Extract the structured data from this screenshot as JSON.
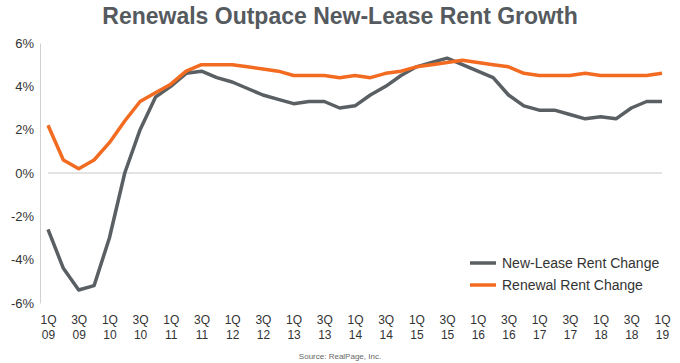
{
  "chart_data": {
    "type": "line",
    "title": "Renewals Outpace New-Lease Rent Growth",
    "source": "Source: RealPage, Inc.",
    "categories": [
      "1Q 09",
      null,
      "3Q 09",
      null,
      "1Q 10",
      null,
      "3Q 10",
      null,
      "1Q 11",
      null,
      "3Q 11",
      null,
      "1Q 12",
      null,
      "3Q 12",
      null,
      "1Q 13",
      null,
      "3Q 13",
      null,
      "1Q 14",
      null,
      "3Q 14",
      null,
      "1Q 15",
      null,
      "3Q 15",
      null,
      "1Q 16",
      null,
      "3Q 16",
      null,
      "1Q 17",
      null,
      "3Q 17",
      null,
      "1Q 18",
      null,
      "3Q 18",
      null,
      "1Q 19"
    ],
    "series": [
      {
        "name": "New-Lease Rent Change",
        "color": "#595f63",
        "values": [
          -2.6,
          -4.4,
          -5.4,
          -5.2,
          -3.0,
          0.0,
          2.0,
          3.5,
          4.0,
          4.6,
          4.7,
          4.4,
          4.2,
          3.9,
          3.6,
          3.4,
          3.2,
          3.3,
          3.3,
          3.0,
          3.1,
          3.6,
          4.0,
          4.5,
          4.9,
          5.1,
          5.3,
          5.0,
          4.7,
          4.4,
          3.6,
          3.1,
          2.9,
          2.9,
          2.7,
          2.5,
          2.6,
          2.5,
          3.0,
          3.3,
          3.3
        ]
      },
      {
        "name": "Renewal Rent Change",
        "color": "#f26b21",
        "values": [
          2.2,
          0.6,
          0.2,
          0.6,
          1.4,
          2.4,
          3.3,
          3.7,
          4.1,
          4.7,
          5.0,
          5.0,
          5.0,
          4.9,
          4.8,
          4.7,
          4.5,
          4.5,
          4.5,
          4.4,
          4.5,
          4.4,
          4.6,
          4.7,
          4.9,
          5.0,
          5.1,
          5.2,
          5.1,
          5.0,
          4.9,
          4.6,
          4.5,
          4.5,
          4.5,
          4.6,
          4.5,
          4.5,
          4.5,
          4.5,
          4.6
        ]
      }
    ],
    "ylim": [
      -6,
      6
    ],
    "yticks": [
      {
        "value": -6,
        "label": "-6%"
      },
      {
        "value": -4,
        "label": "-4%"
      },
      {
        "value": -2,
        "label": "-2%"
      },
      {
        "value": 0,
        "label": "0%"
      },
      {
        "value": 2,
        "label": "2%"
      },
      {
        "value": 4,
        "label": "4%"
      },
      {
        "value": 6,
        "label": "6%"
      }
    ],
    "grid": false,
    "legend": "lower right"
  }
}
